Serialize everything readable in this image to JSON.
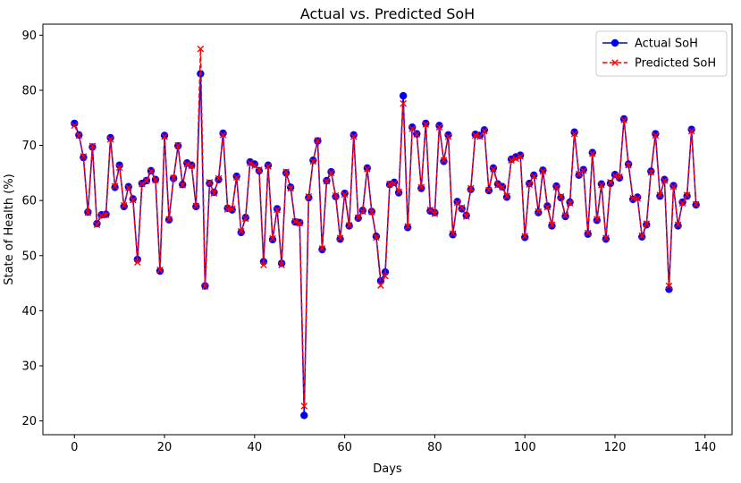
{
  "chart_data": {
    "type": "line",
    "title": "Actual vs. Predicted SoH",
    "xlabel": "Days",
    "ylabel": "State of Health (%)",
    "xlim": [
      -7,
      146
    ],
    "ylim": [
      17.5,
      92
    ],
    "xticks": [
      0,
      20,
      40,
      60,
      80,
      100,
      120,
      140
    ],
    "yticks": [
      20,
      30,
      40,
      50,
      60,
      70,
      80,
      90
    ],
    "legend_position": "top-right",
    "series": [
      {
        "name": "Actual SoH",
        "color": "#0000ff",
        "marker": "circle",
        "line": "solid",
        "values": [
          74.0,
          71.9,
          67.8,
          57.9,
          69.7,
          55.8,
          57.4,
          57.5,
          71.4,
          62.4,
          66.4,
          58.9,
          62.5,
          60.3,
          49.3,
          63.1,
          63.6,
          65.4,
          63.8,
          47.2,
          71.8,
          56.5,
          64.0,
          69.9,
          62.9,
          66.8,
          66.4,
          58.9,
          83.0,
          44.5,
          63.1,
          61.5,
          63.8,
          72.2,
          58.6,
          58.3,
          64.4,
          54.2,
          56.9,
          67.0,
          66.6,
          65.4,
          48.9,
          66.4,
          52.9,
          58.5,
          48.6,
          65.0,
          62.4,
          56.1,
          56.0,
          21.0,
          60.5,
          67.3,
          70.8,
          51.1,
          63.6,
          65.2,
          60.7,
          53.0,
          61.3,
          55.4,
          71.9,
          56.8,
          58.2,
          65.9,
          58.0,
          53.5,
          45.4,
          47.0,
          62.9,
          63.3,
          61.4,
          79.0,
          55.1,
          73.3,
          72.1,
          62.2,
          74.0,
          58.1,
          57.8,
          73.6,
          67.1,
          71.9,
          53.8,
          59.8,
          58.5,
          57.3,
          62.0,
          72.0,
          71.8,
          72.8,
          61.8,
          65.9,
          63.0,
          62.5,
          60.6,
          67.5,
          67.9,
          68.2,
          53.3,
          63.1,
          64.6,
          57.8,
          65.5,
          59.0,
          55.4,
          62.6,
          60.5,
          57.1,
          59.7,
          72.4,
          64.6,
          65.6,
          53.9,
          68.7,
          56.4,
          63.0,
          53.0,
          63.1,
          64.7,
          64.1,
          74.8,
          66.6,
          60.2,
          60.6,
          53.4,
          55.6,
          65.3,
          72.1,
          60.8,
          63.8,
          43.9,
          62.7,
          55.4,
          59.7,
          60.8,
          72.9,
          59.2
        ]
      },
      {
        "name": "Predicted SoH",
        "color": "#ff0000",
        "marker": "x",
        "line": "dashed",
        "values": [
          73.6,
          71.8,
          68.0,
          57.8,
          69.9,
          55.6,
          57.3,
          57.4,
          71.1,
          62.6,
          66.0,
          59.1,
          62.3,
          60.1,
          48.8,
          63.0,
          63.6,
          65.3,
          63.7,
          47.4,
          71.6,
          56.6,
          64.1,
          70.0,
          62.8,
          66.6,
          66.3,
          59.0,
          87.5,
          44.4,
          63.3,
          61.3,
          64.0,
          71.9,
          58.4,
          58.5,
          64.2,
          54.4,
          56.7,
          66.8,
          66.3,
          65.6,
          48.3,
          66.2,
          53.1,
          58.3,
          48.3,
          65.2,
          62.2,
          56.2,
          55.9,
          22.7,
          60.7,
          67.1,
          70.9,
          51.3,
          63.5,
          65.0,
          60.9,
          53.2,
          61.1,
          55.5,
          71.6,
          56.9,
          58.0,
          65.7,
          57.9,
          53.3,
          44.6,
          46.3,
          63.0,
          63.1,
          61.6,
          77.6,
          55.3,
          73.0,
          72.0,
          62.4,
          73.8,
          58.3,
          57.6,
          73.3,
          67.3,
          71.6,
          54.0,
          59.6,
          58.7,
          57.1,
          62.2,
          71.8,
          71.6,
          72.6,
          61.9,
          65.7,
          62.8,
          62.4,
          60.8,
          67.3,
          67.6,
          68.0,
          53.5,
          62.9,
          64.4,
          58.0,
          65.3,
          58.8,
          55.6,
          62.4,
          60.7,
          57.3,
          59.5,
          72.1,
          64.8,
          65.4,
          54.1,
          68.5,
          56.6,
          62.8,
          53.2,
          63.3,
          64.5,
          64.3,
          74.6,
          66.4,
          60.4,
          60.4,
          53.6,
          55.8,
          65.1,
          71.8,
          61.0,
          63.6,
          44.5,
          62.5,
          55.6,
          59.5,
          61.0,
          72.6,
          59.3
        ]
      }
    ]
  }
}
